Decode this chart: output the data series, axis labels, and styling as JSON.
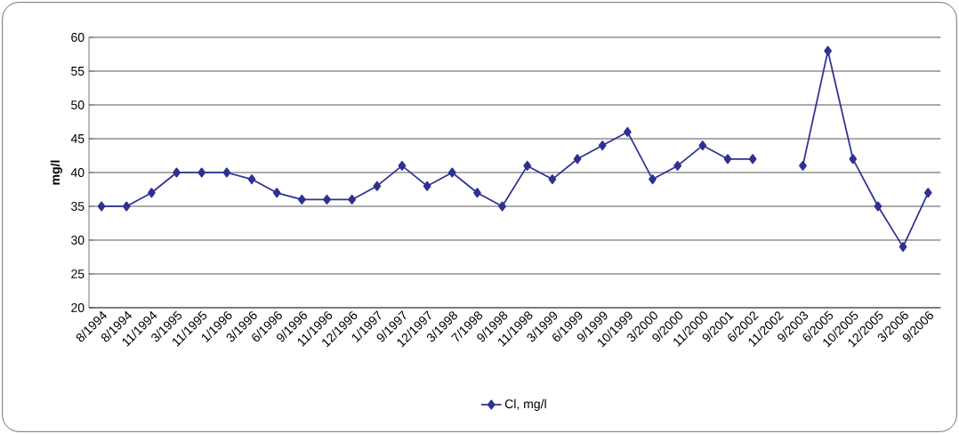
{
  "chart_data": {
    "type": "line",
    "ylabel": "mg/l",
    "categories": [
      "8/1994",
      "8/1994",
      "11/1994",
      "3/1995",
      "11/1995",
      "1/1996",
      "3/1996",
      "6/1996",
      "9/1996",
      "11/1996",
      "12/1996",
      "1/1997",
      "9/1997",
      "12/1997",
      "3/1998",
      "7/1998",
      "9/1998",
      "11/1998",
      "3/1999",
      "6/1999",
      "9/1999",
      "10/1999",
      "3/2000",
      "9/2000",
      "11/2000",
      "9/2001",
      "6/2002",
      "11/2002",
      "9/2003",
      "6/2005",
      "10/2005",
      "12/2005",
      "3/2006",
      "9/2006"
    ],
    "series": [
      {
        "name": "Cl, mg/l",
        "color": "#2e3192",
        "values": [
          35,
          35,
          37,
          40,
          40,
          40,
          39,
          37,
          36,
          36,
          36,
          38,
          41,
          38,
          40,
          37,
          35,
          41,
          39,
          42,
          44,
          46,
          39,
          41,
          44,
          42,
          42,
          null,
          41,
          58,
          42,
          35,
          29,
          37
        ]
      }
    ],
    "ylim": [
      20,
      60
    ],
    "yticks": [
      20,
      25,
      30,
      35,
      40,
      45,
      50,
      55,
      60
    ],
    "grid": "y",
    "legend": "bottom",
    "marker": "diamond",
    "line_style": "solid"
  }
}
